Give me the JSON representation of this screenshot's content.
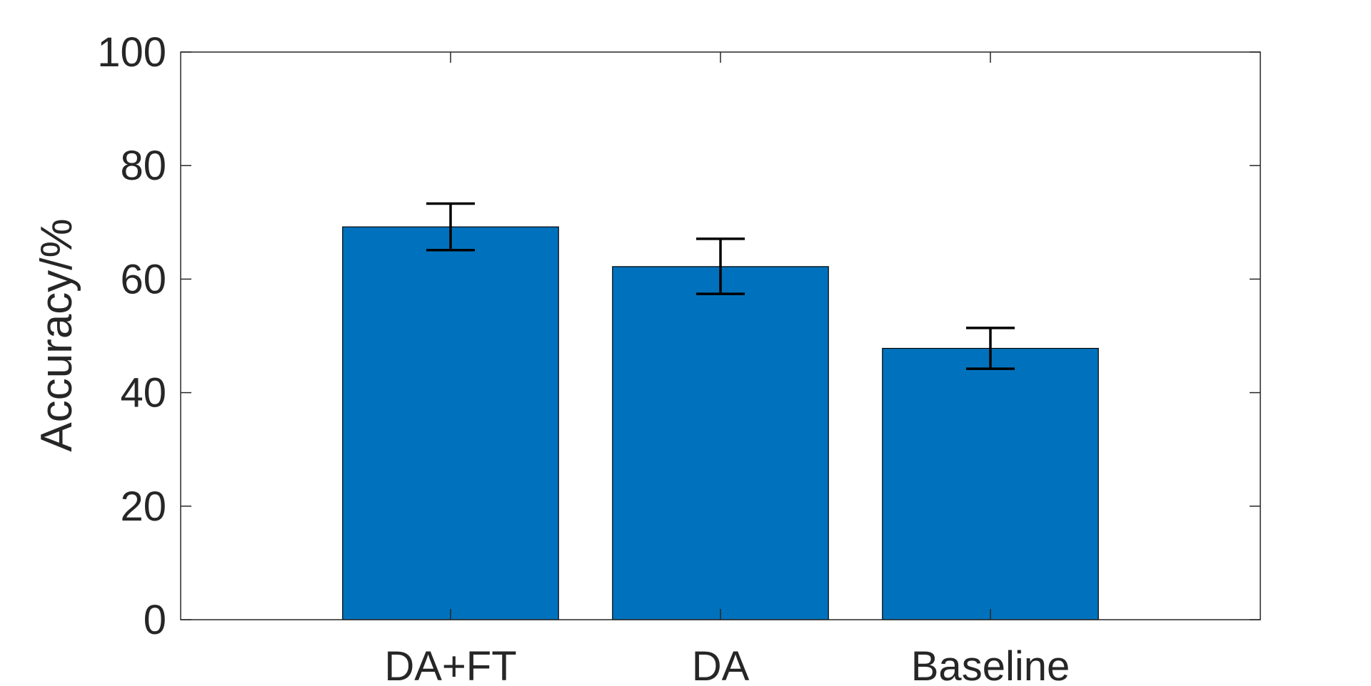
{
  "chart_data": {
    "type": "bar",
    "title": "",
    "xlabel": "",
    "ylabel": "Accuracy/%",
    "categories": [
      "DA+FT",
      "DA",
      "Baseline"
    ],
    "values": [
      69.2,
      62.2,
      47.8
    ],
    "error_bars": [
      {
        "lower": 65.1,
        "upper": 73.3
      },
      {
        "lower": 57.4,
        "upper": 67.1
      },
      {
        "lower": 44.2,
        "upper": 51.4
      }
    ],
    "ylim": [
      0,
      100
    ],
    "yticks": [
      0,
      20,
      40,
      60,
      80,
      100
    ],
    "grid": false,
    "bar_color": "#0072BD",
    "errorbar_color": "#000000",
    "axis_color": "#262626"
  }
}
